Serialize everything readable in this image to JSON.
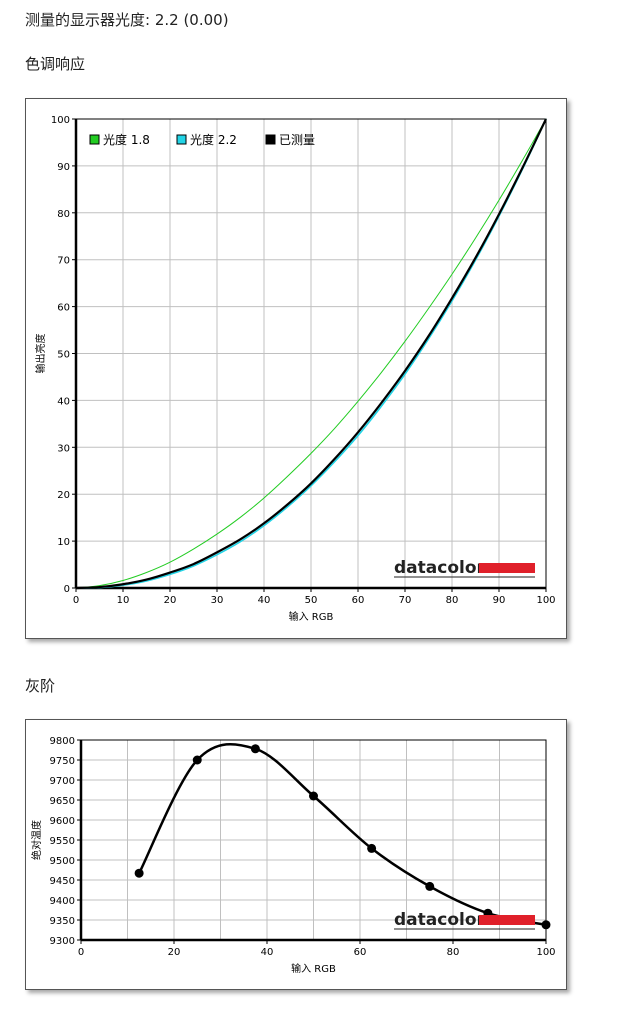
{
  "header": {
    "display_gamma": "测量的显示器光度: 2.2 (0.00)"
  },
  "sections": {
    "tone_title": "色调响应",
    "gray_title": "灰阶"
  },
  "brand": "datacolor",
  "colors": {
    "green": "#22cc22",
    "cyan": "#22d4e6",
    "black": "#000000",
    "brand_red": "#e0202a",
    "grid": "#c0c0c0"
  },
  "chart_data": [
    {
      "type": "line",
      "xlabel": "输入 RGB",
      "ylabel": "输出亮度",
      "xlim": [
        0,
        100
      ],
      "ylim": [
        0,
        100
      ],
      "xticks": [
        0,
        10,
        20,
        30,
        40,
        50,
        60,
        70,
        80,
        90,
        100
      ],
      "yticks": [
        0,
        10,
        20,
        30,
        40,
        50,
        60,
        70,
        80,
        90,
        100
      ],
      "grid": true,
      "legend_position": "top-left",
      "x": [
        0,
        5,
        10,
        15,
        20,
        25,
        30,
        35,
        40,
        45,
        50,
        55,
        60,
        65,
        70,
        75,
        80,
        85,
        90,
        95,
        100
      ],
      "series": [
        {
          "name": "光度 1.8",
          "color": "#22cc22",
          "values": [
            0,
            0.5,
            1.6,
            3.3,
            5.5,
            8.3,
            11.5,
            15.1,
            19.2,
            23.8,
            28.7,
            34.0,
            39.8,
            46.0,
            52.6,
            59.6,
            66.9,
            74.6,
            82.7,
            91.2,
            100
          ]
        },
        {
          "name": "光度 2.2",
          "color": "#22d4e6",
          "values": [
            0,
            0.1,
            0.6,
            1.5,
            2.9,
            4.7,
            7.1,
            9.9,
            13.3,
            17.3,
            21.8,
            26.9,
            32.5,
            38.8,
            45.6,
            53.1,
            61.2,
            69.9,
            79.3,
            89.3,
            100
          ]
        },
        {
          "name": "已测量",
          "color": "#000000",
          "values": [
            0,
            0.2,
            0.8,
            1.8,
            3.3,
            5.1,
            7.6,
            10.4,
            13.8,
            17.8,
            22.3,
            27.5,
            33.2,
            39.5,
            46.3,
            53.7,
            61.8,
            70.4,
            79.7,
            89.6,
            100
          ]
        }
      ]
    },
    {
      "type": "line",
      "xlabel": "输入 RGB",
      "ylabel": "绝对温度",
      "xlim": [
        0,
        100
      ],
      "ylim": [
        9300,
        9800
      ],
      "xticks": [
        0,
        20,
        40,
        60,
        80,
        100
      ],
      "yticks": [
        9300,
        9350,
        9400,
        9450,
        9500,
        9550,
        9600,
        9650,
        9700,
        9750,
        9800
      ],
      "grid": true,
      "series": [
        {
          "name": "",
          "color": "#000000",
          "x": [
            12.5,
            25,
            37.5,
            50,
            62.5,
            75,
            87.5,
            100
          ],
          "values": [
            9467,
            9750,
            9778,
            9660,
            9529,
            9434,
            9367,
            9338
          ]
        }
      ]
    }
  ]
}
